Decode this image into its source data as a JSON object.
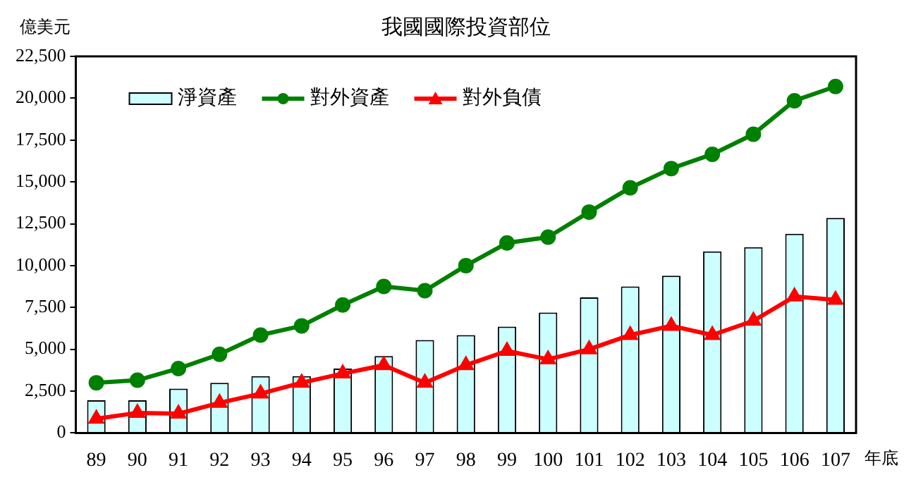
{
  "chart_data": {
    "type": "bar",
    "title": "我國國際投資部位",
    "ylabel": "億美元",
    "xlabel": "年底",
    "categories": [
      "89",
      "90",
      "91",
      "92",
      "93",
      "94",
      "95",
      "96",
      "97",
      "98",
      "99",
      "100",
      "101",
      "102",
      "103",
      "104",
      "105",
      "106",
      "107"
    ],
    "series": [
      {
        "name": "淨資產",
        "color": "#ccffff",
        "values": [
          1950,
          1950,
          2650,
          3000,
          3400,
          3400,
          3850,
          4600,
          5550,
          5850,
          6350,
          7200,
          8100,
          8750,
          9400,
          10850,
          11100,
          11900,
          12850
        ]
      },
      {
        "name": "對外資產",
        "type": "line",
        "color": "#008000",
        "marker": "circle",
        "values": [
          3000,
          3150,
          3850,
          4700,
          5850,
          6400,
          7650,
          8750,
          8500,
          10000,
          11350,
          11700,
          13200,
          14650,
          15800,
          16650,
          17850,
          19850,
          20700
        ]
      },
      {
        "name": "對外負債",
        "type": "line",
        "color": "#ff0000",
        "marker": "triangle",
        "values": [
          850,
          1200,
          1150,
          1800,
          2350,
          3000,
          3550,
          4050,
          3000,
          4050,
          4900,
          4400,
          5000,
          5850,
          6400,
          5850,
          6700,
          8150,
          7950
        ]
      }
    ],
    "ylim": [
      0,
      22500
    ],
    "yticks": [
      0,
      {
        "value": 2500,
        "label": "2,500"
      },
      {
        "value": 5000,
        "label": "5,000"
      },
      {
        "value": 7500,
        "label": "7,500"
      },
      {
        "value": 10000,
        "label": "10,000"
      },
      {
        "value": 12500,
        "label": "12,500"
      },
      {
        "value": 15000,
        "label": "15,000"
      },
      {
        "value": 17500,
        "label": "17,500"
      },
      {
        "value": 20000,
        "label": "20,000"
      },
      {
        "value": 22500,
        "label": "22,500"
      }
    ],
    "grid": false,
    "legend": "top left"
  }
}
